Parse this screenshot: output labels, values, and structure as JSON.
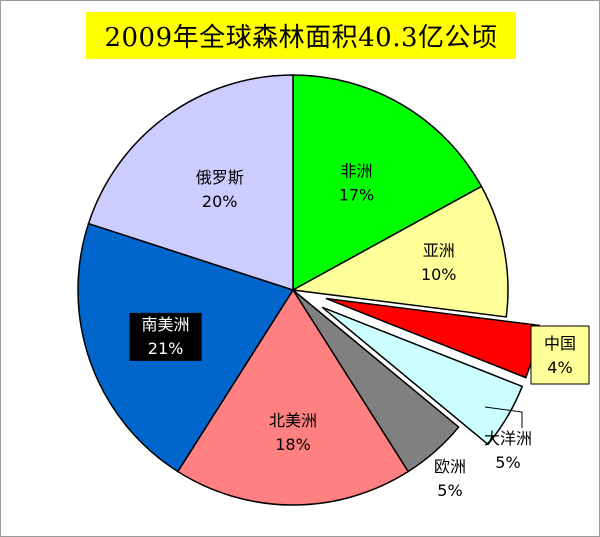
{
  "chart_data": {
    "type": "pie",
    "title": "2009年全球森林面积40.3亿公顷",
    "slices": [
      {
        "label": "非洲",
        "pct_label": "17%",
        "value": 17,
        "color": "#00ff00",
        "exploded": false,
        "label_box": false
      },
      {
        "label": "亚洲",
        "pct_label": "10%",
        "value": 10,
        "color": "#ffff99",
        "exploded": false,
        "label_box": false
      },
      {
        "label": "中国",
        "pct_label": "4%",
        "value": 4,
        "color": "#ff0000",
        "exploded": true,
        "label_box": true
      },
      {
        "label": "大洋洲",
        "pct_label": "5%",
        "value": 5,
        "color": "#ccffff",
        "exploded": true,
        "label_box": false
      },
      {
        "label": "欧洲",
        "pct_label": "5%",
        "value": 5,
        "color": "#808080",
        "exploded": false,
        "label_box": false
      },
      {
        "label": "北美洲",
        "pct_label": "18%",
        "value": 18,
        "color": "#ff8080",
        "exploded": false,
        "label_box": false
      },
      {
        "label": "南美洲",
        "pct_label": "21%",
        "value": 21,
        "color": "#0066cc",
        "exploded": false,
        "label_box": false,
        "label_dark": true
      },
      {
        "label": "俄罗斯",
        "pct_label": "20%",
        "value": 20,
        "color": "#ccccff",
        "exploded": false,
        "label_box": false
      }
    ],
    "title_background": "#ffff00",
    "label_box_background": "#ffff99",
    "dark_label_background": "#000000",
    "legend": "none"
  }
}
